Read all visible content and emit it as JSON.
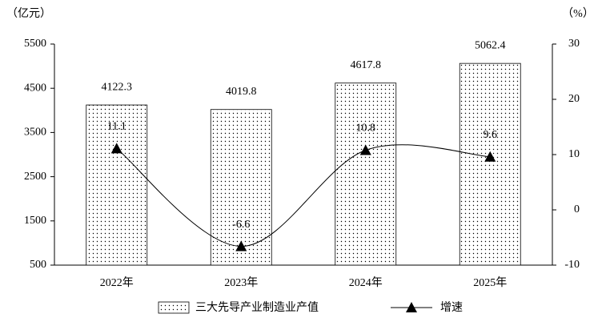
{
  "chart_data": {
    "type": "bar",
    "y_label": "（亿元）",
    "y2_label": "（%）",
    "categories": [
      "2022年",
      "2023年",
      "2024年",
      "2025年"
    ],
    "series": [
      {
        "name": "三大先导产业制造业产值",
        "type": "bar",
        "color": "#000000",
        "values": [
          4122.3,
          4019.8,
          4617.8,
          5062.4
        ]
      },
      {
        "name": "增速",
        "type": "line",
        "axis": "y2",
        "color": "#000000",
        "values": [
          11.1,
          -6.6,
          10.8,
          9.6
        ]
      }
    ],
    "ylim": [
      500,
      5500
    ],
    "yticks": [
      500,
      1500,
      2500,
      3500,
      4500,
      5500
    ],
    "y2lim": [
      -10,
      30
    ],
    "y2ticks": [
      -10,
      0,
      10,
      20,
      30
    ],
    "legend": "bottom"
  }
}
